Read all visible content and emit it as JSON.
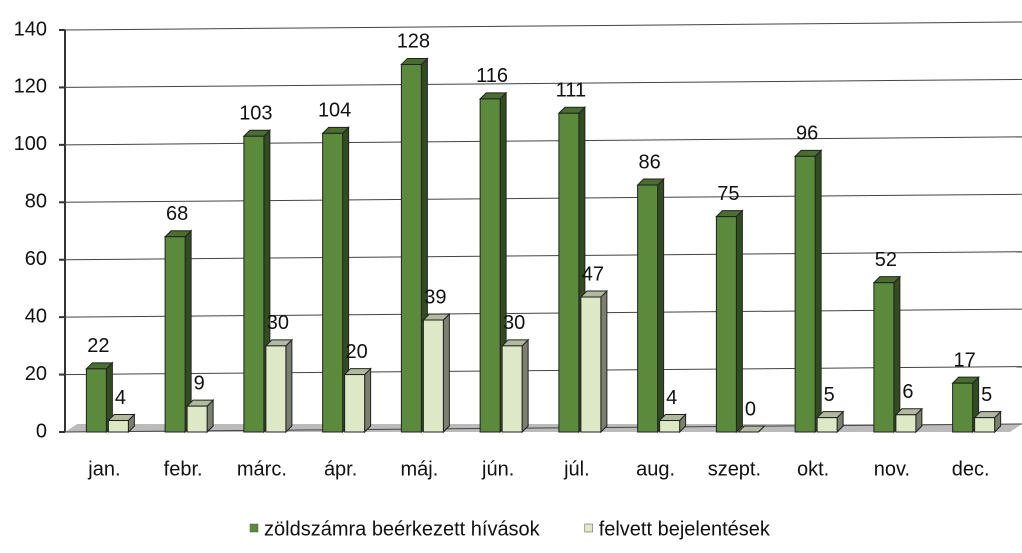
{
  "chart_data": {
    "type": "bar",
    "categories": [
      "jan.",
      "febr.",
      "márc.",
      "ápr.",
      "máj.",
      "jún.",
      "júl.",
      "aug.",
      "szept.",
      "okt.",
      "nov.",
      "dec."
    ],
    "series": [
      {
        "name": "zöldszámra beérkezett hívások",
        "color": "#5b8a3c",
        "values": [
          22,
          68,
          103,
          104,
          128,
          116,
          111,
          86,
          75,
          96,
          52,
          17
        ]
      },
      {
        "name": "felvett bejelentések",
        "color": "#dde8c6",
        "values": [
          4,
          9,
          30,
          20,
          39,
          30,
          47,
          4,
          0,
          5,
          6,
          5
        ]
      }
    ],
    "ylim": [
      0,
      140
    ],
    "yticks": [
      0,
      20,
      40,
      60,
      80,
      100,
      120,
      140
    ],
    "grid": true,
    "legend": "bottom"
  }
}
